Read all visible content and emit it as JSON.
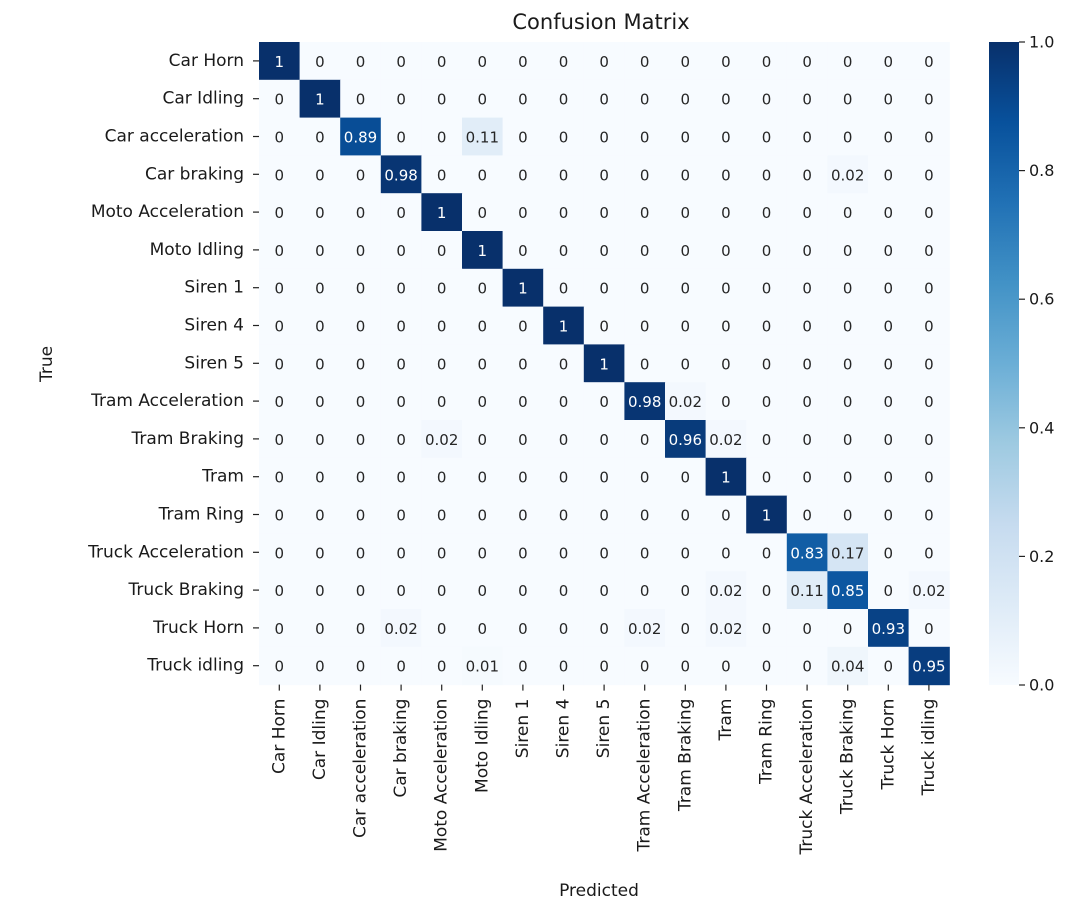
{
  "chart_data": {
    "type": "heatmap",
    "title": "Confusion Matrix",
    "xlabel": "Predicted",
    "ylabel": "True",
    "labels": [
      "Car Horn",
      "Car Idling",
      "Car acceleration",
      "Car braking",
      "Moto Acceleration",
      "Moto Idling",
      "Siren 1",
      "Siren 4",
      "Siren 5",
      "Tram Acceleration",
      "Tram Braking",
      "Tram",
      "Tram Ring",
      "Truck Acceleration",
      "Truck Braking",
      "Truck Horn",
      "Truck idling"
    ],
    "matrix": [
      [
        1,
        0,
        0,
        0,
        0,
        0,
        0,
        0,
        0,
        0,
        0,
        0,
        0,
        0,
        0,
        0,
        0
      ],
      [
        0,
        1,
        0,
        0,
        0,
        0,
        0,
        0,
        0,
        0,
        0,
        0,
        0,
        0,
        0,
        0,
        0
      ],
      [
        0,
        0,
        0.89,
        0,
        0,
        0.11,
        0,
        0,
        0,
        0,
        0,
        0,
        0,
        0,
        0,
        0,
        0
      ],
      [
        0,
        0,
        0,
        0.98,
        0,
        0,
        0,
        0,
        0,
        0,
        0,
        0,
        0,
        0,
        0.02,
        0,
        0
      ],
      [
        0,
        0,
        0,
        0,
        1,
        0,
        0,
        0,
        0,
        0,
        0,
        0,
        0,
        0,
        0,
        0,
        0
      ],
      [
        0,
        0,
        0,
        0,
        0,
        1,
        0,
        0,
        0,
        0,
        0,
        0,
        0,
        0,
        0,
        0,
        0
      ],
      [
        0,
        0,
        0,
        0,
        0,
        0,
        1,
        0,
        0,
        0,
        0,
        0,
        0,
        0,
        0,
        0,
        0
      ],
      [
        0,
        0,
        0,
        0,
        0,
        0,
        0,
        1,
        0,
        0,
        0,
        0,
        0,
        0,
        0,
        0,
        0
      ],
      [
        0,
        0,
        0,
        0,
        0,
        0,
        0,
        0,
        1,
        0,
        0,
        0,
        0,
        0,
        0,
        0,
        0
      ],
      [
        0,
        0,
        0,
        0,
        0,
        0,
        0,
        0,
        0,
        0.98,
        0.02,
        0,
        0,
        0,
        0,
        0,
        0
      ],
      [
        0,
        0,
        0,
        0,
        0.02,
        0,
        0,
        0,
        0,
        0,
        0.96,
        0.02,
        0,
        0,
        0,
        0,
        0
      ],
      [
        0,
        0,
        0,
        0,
        0,
        0,
        0,
        0,
        0,
        0,
        0,
        1,
        0,
        0,
        0,
        0,
        0
      ],
      [
        0,
        0,
        0,
        0,
        0,
        0,
        0,
        0,
        0,
        0,
        0,
        0,
        1,
        0,
        0,
        0,
        0
      ],
      [
        0,
        0,
        0,
        0,
        0,
        0,
        0,
        0,
        0,
        0,
        0,
        0,
        0,
        0.83,
        0.17,
        0,
        0
      ],
      [
        0,
        0,
        0,
        0,
        0,
        0,
        0,
        0,
        0,
        0,
        0,
        0.02,
        0,
        0.11,
        0.85,
        0,
        0.02
      ],
      [
        0,
        0,
        0,
        0.02,
        0,
        0,
        0,
        0,
        0,
        0.02,
        0,
        0.02,
        0,
        0,
        0,
        0.93,
        0
      ],
      [
        0,
        0,
        0,
        0,
        0,
        0.01,
        0,
        0,
        0,
        0,
        0,
        0,
        0,
        0,
        0.04,
        0,
        0.95
      ]
    ],
    "colorbar": {
      "min": 0.0,
      "max": 1.0,
      "ticks": [
        "0.0",
        "0.2",
        "0.4",
        "0.6",
        "0.8",
        "1.0"
      ]
    },
    "colormap": [
      "#f7fbff",
      "#deebf7",
      "#c6dbef",
      "#9ecae1",
      "#6baed6",
      "#4292c6",
      "#2171b5",
      "#08519c",
      "#08306b"
    ],
    "grid": false,
    "legend": "colorbar-right"
  }
}
